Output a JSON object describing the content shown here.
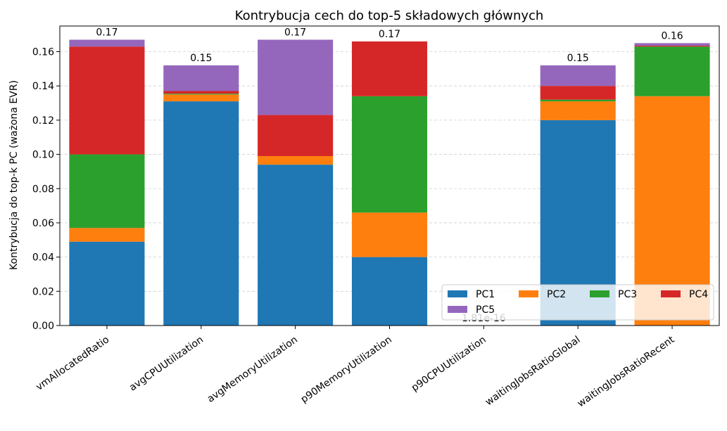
{
  "chart_data": {
    "type": "bar",
    "stacked": true,
    "title": "Kontrybucja cech do top-5 składowych głównych",
    "xlabel": "",
    "ylabel": "Kontrybucja do top-k PC (ważona EVR)",
    "ylim": [
      0,
      0.175
    ],
    "yticks": [
      "0.00",
      "0.02",
      "0.04",
      "0.06",
      "0.08",
      "0.10",
      "0.12",
      "0.14",
      "0.16"
    ],
    "grid": "y-dashed",
    "legend_placement": "lower-right",
    "categories": [
      "vmAllocatedRatio",
      "avgCPUUtilization",
      "avgMemoryUtilization",
      "p90MemoryUtilization",
      "p90CPUUtilization",
      "waitingJobsRatioGlobal",
      "waitingJobsRatioRecent"
    ],
    "series": [
      {
        "name": "PC1",
        "color": "#1f77b4",
        "values": [
          0.049,
          0.131,
          0.094,
          0.04,
          0.0,
          0.12,
          0.0
        ]
      },
      {
        "name": "PC2",
        "color": "#ff7f0e",
        "values": [
          0.008,
          0.004,
          0.005,
          0.026,
          0.0,
          0.011,
          0.134
        ]
      },
      {
        "name": "PC3",
        "color": "#2ca02c",
        "values": [
          0.043,
          0.0005,
          0.0,
          0.068,
          0.0,
          0.001,
          0.029
        ]
      },
      {
        "name": "PC4",
        "color": "#d62728",
        "values": [
          0.063,
          0.0015,
          0.024,
          0.032,
          0.0,
          0.008,
          0.0005
        ]
      },
      {
        "name": "PC5",
        "color": "#9467bd",
        "values": [
          0.004,
          0.015,
          0.044,
          0.0,
          0.0,
          0.012,
          0.0015
        ]
      }
    ],
    "total_labels": [
      "0.17",
      "0.15",
      "0.17",
      "0.17",
      "1.81e-16",
      "0.15",
      "0.16"
    ]
  }
}
